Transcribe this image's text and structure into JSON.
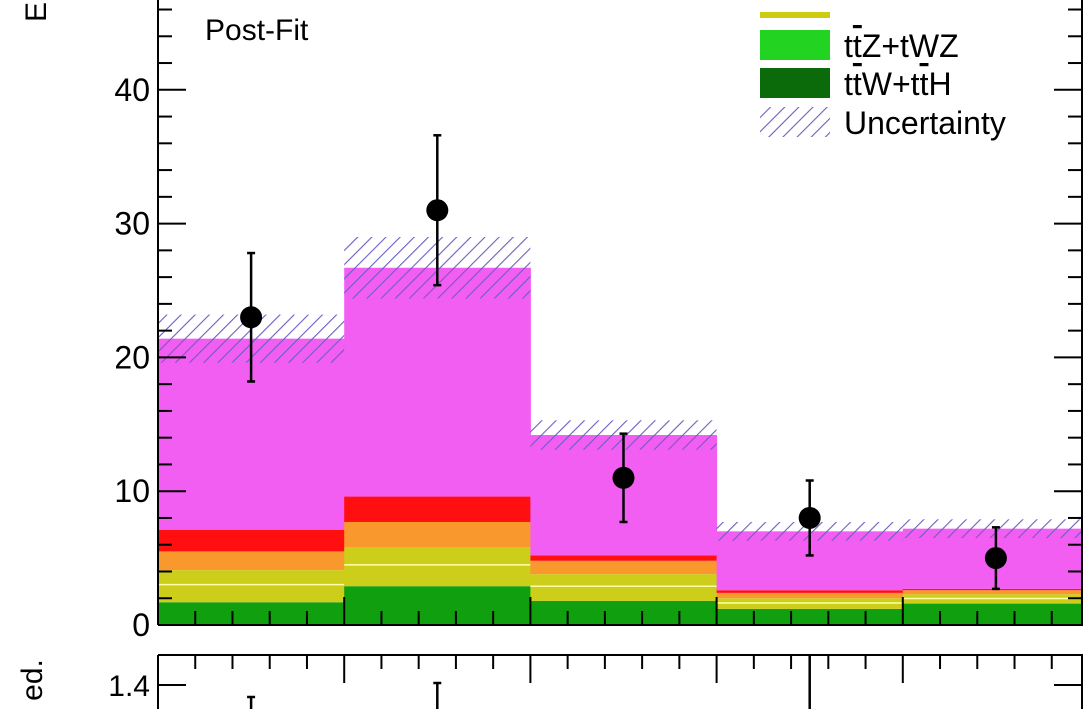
{
  "chart_data": [
    {
      "type": "bar",
      "stacked": true,
      "annotation": "Post-Fit",
      "ylabel_fragment": "E",
      "ylim": [
        0,
        46
      ],
      "yticks": [
        0,
        10,
        20,
        30,
        40
      ],
      "ytick_labels": [
        "0",
        "10",
        "20",
        "30",
        "40"
      ],
      "bins": 5,
      "series": [
        {
          "name": "",
          "color": "#0f9f0f",
          "values": [
            1.7,
            2.9,
            1.8,
            1.2,
            1.6
          ]
        },
        {
          "name": "ttZ+tWZ",
          "color": "#22d322",
          "values": [
            0.0,
            0.0,
            0.0,
            0.0,
            0.0
          ]
        },
        {
          "name": "",
          "color": "#ccce1a",
          "values": [
            2.4,
            2.9,
            2.0,
            0.8,
            0.7
          ]
        },
        {
          "name": "",
          "color": "#f9992d",
          "values": [
            1.4,
            1.9,
            1.0,
            0.4,
            0.3
          ]
        },
        {
          "name": "",
          "color": "#ff0f0f",
          "values": [
            1.6,
            1.9,
            0.4,
            0.2,
            0.1
          ]
        },
        {
          "name": "",
          "color": "#f25ef2",
          "values": [
            14.3,
            17.1,
            9.0,
            4.4,
            4.5
          ]
        }
      ],
      "legend_patches": [
        {
          "name": "ttW+ttH",
          "label_parts": [
            "t",
            "t",
            "W+",
            "t",
            "t",
            "H"
          ],
          "color": "#0b6b0b"
        }
      ],
      "totals": [
        21.4,
        26.7,
        14.2,
        7.0,
        7.2
      ],
      "uncertainty": {
        "name": "Uncertainty",
        "color": "#6a5fbf",
        "plus_minus": [
          1.8,
          2.3,
          1.1,
          0.7,
          0.7
        ]
      },
      "data_points": [
        {
          "y": 23,
          "err": 4.8
        },
        {
          "y": 31,
          "err": 5.6
        },
        {
          "y": 11,
          "err": 3.3
        },
        {
          "y": 8,
          "err": 2.8
        },
        {
          "y": 5,
          "err": 2.3
        }
      ],
      "legend": [
        {
          "label_parts": [
            "t",
            "t",
            "Z+tWZ"
          ],
          "marker": "fill",
          "color": "#22d322"
        },
        {
          "label_parts": [
            "t",
            "t",
            "W+",
            "t",
            "t",
            "H"
          ],
          "marker": "fill",
          "color": "#0b6b0b"
        },
        {
          "label_parts": [
            "Uncertainty"
          ],
          "marker": "hatch",
          "color": "#6a5fbf"
        }
      ],
      "legend_placement": "top-right",
      "yellow_legend_sliver_color": "#cccc10"
    },
    {
      "type": "scatter",
      "panel": "ratio",
      "ylabel_fragment": "ed.",
      "ytick_label_visible": "1.4",
      "points": [
        {
          "y_top_visible": true
        },
        {
          "y_top_visible": true
        },
        {
          "y_top_visible": true
        }
      ]
    }
  ]
}
